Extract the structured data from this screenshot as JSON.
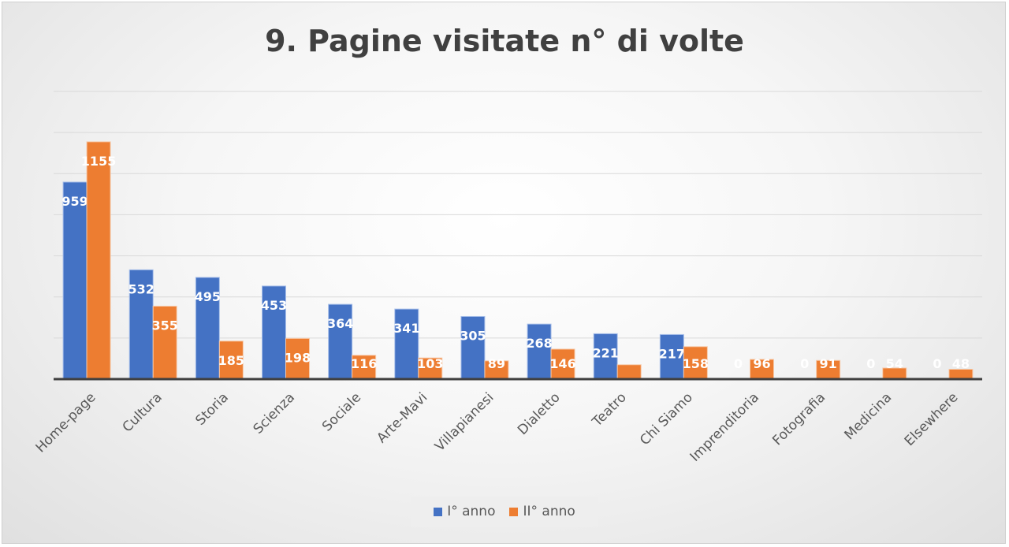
{
  "chart_data": {
    "type": "bar",
    "title": "9. Pagine visitate n° di volte",
    "xlabel": "",
    "ylabel": "",
    "categories": [
      "Home-page",
      "Cultura",
      "Storia",
      "Scienza",
      "Sociale",
      "Arte-Mavi",
      "Villapianesi",
      "Dialetto",
      "Teatro",
      "Chi Siamo",
      "Imprenditoria",
      "Fotografia",
      "Medicina",
      "Elsewhere"
    ],
    "series": [
      {
        "name": "I° anno",
        "color": "#4472C4",
        "values": [
          959,
          532,
          495,
          453,
          364,
          341,
          305,
          268,
          221,
          217,
          0,
          0,
          0,
          0
        ]
      },
      {
        "name": "II° anno",
        "color": "#ED7D31",
        "values": [
          1155,
          355,
          185,
          198,
          116,
          103,
          89,
          146,
          70,
          158,
          96,
          91,
          54,
          48
        ]
      }
    ],
    "data_labels": {
      "I° anno": [
        "959",
        "532",
        "495",
        "453",
        "364",
        "341",
        "305",
        "268",
        "221",
        "217",
        "0",
        "0",
        "0",
        "0"
      ],
      "II° anno": [
        "1155",
        "355",
        "185",
        "198",
        "116",
        "103",
        "89",
        "146",
        "",
        "158",
        "96",
        "91",
        "54",
        "48"
      ]
    },
    "ylim": [
      0,
      1400
    ],
    "gridlines": true,
    "legend_position": "bottom"
  }
}
